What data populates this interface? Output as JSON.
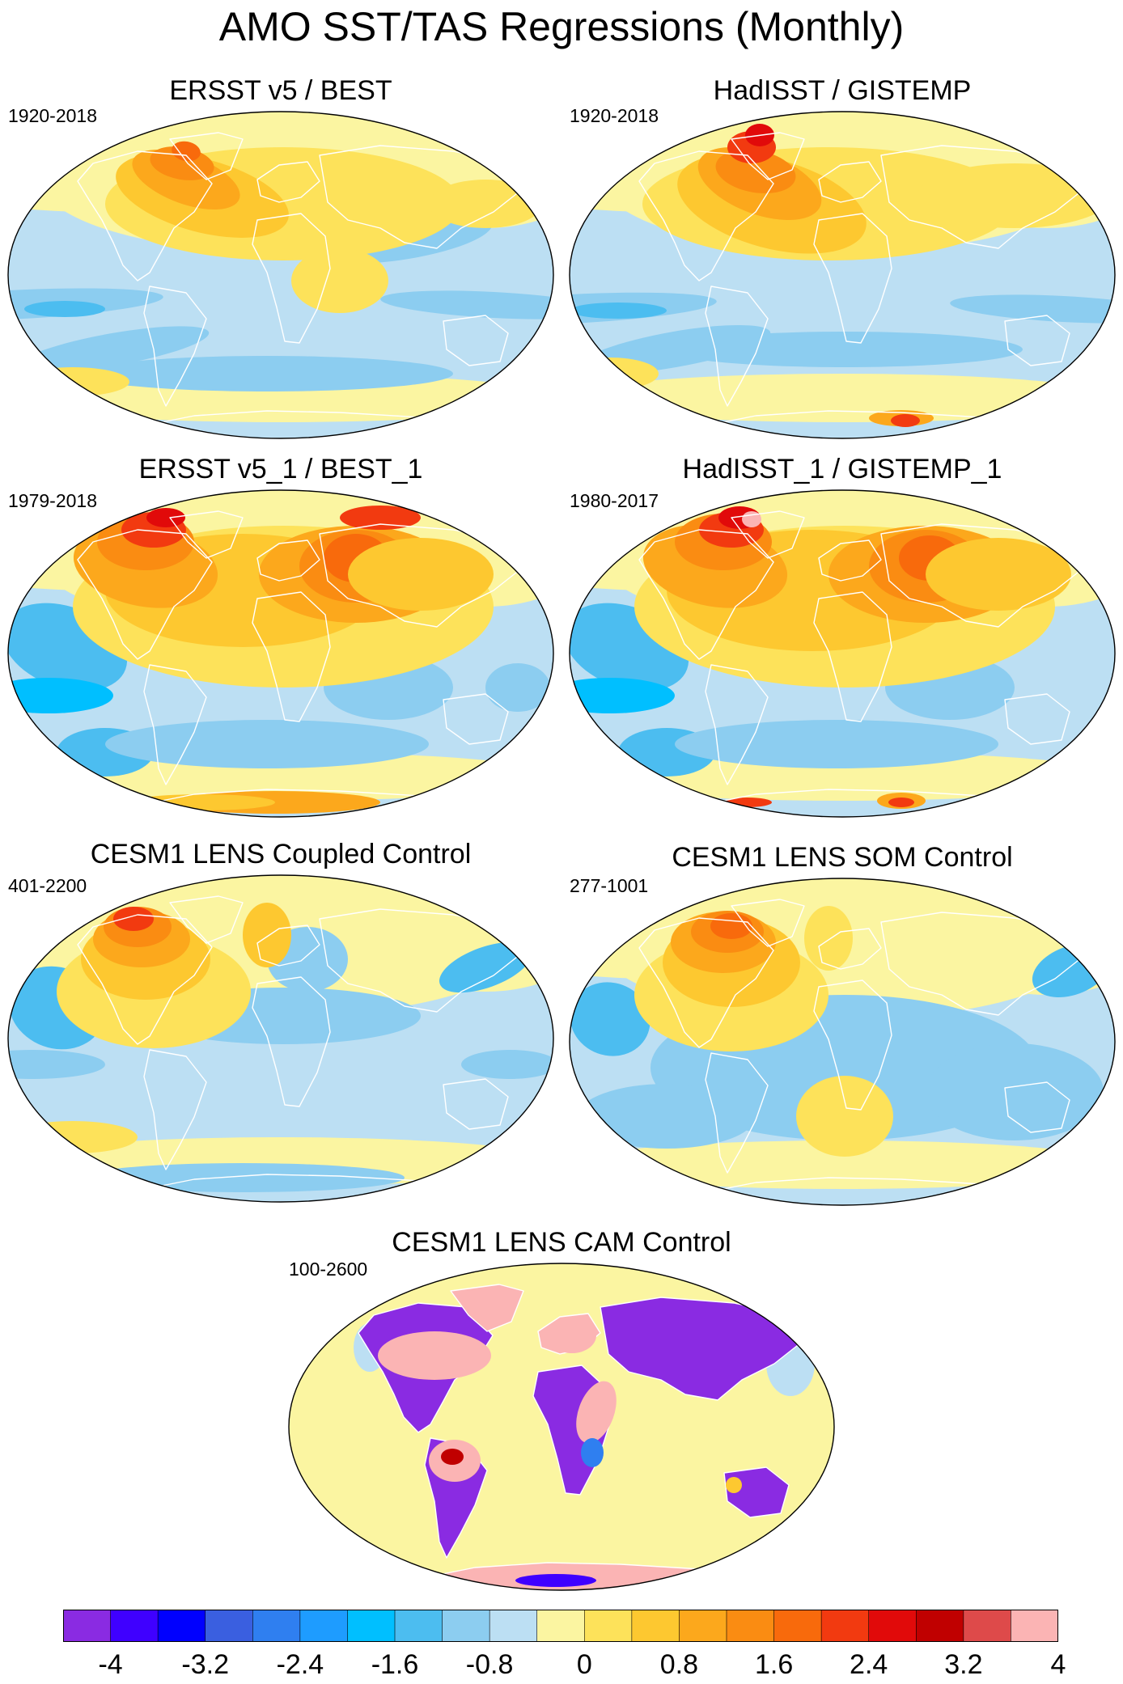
{
  "figure": {
    "title": "AMO SST/TAS Regressions (Monthly)"
  },
  "panels": [
    {
      "title": "ERSST v5 / BEST",
      "period": "1920-2018",
      "pattern": "obs_long"
    },
    {
      "title": "HadISST / GISTEMP",
      "period": "1920-2018",
      "pattern": "obs_long2"
    },
    {
      "title": "ERSST v5_1 / BEST_1",
      "period": "1979-2018",
      "pattern": "obs_recent"
    },
    {
      "title": "HadISST_1 / GISTEMP_1",
      "period": "1980-2017",
      "pattern": "obs_recent2"
    },
    {
      "title": "CESM1 LENS Coupled Control",
      "period": "401-2200",
      "pattern": "coupled"
    },
    {
      "title": "CESM1 LENS SOM Control",
      "period": "277-1001",
      "pattern": "som"
    },
    {
      "title": "CESM1 LENS CAM Control",
      "period": "100-2600",
      "pattern": "cam"
    }
  ],
  "colorbar": {
    "levels": [
      -4,
      -3.6,
      -3.2,
      -2.8,
      -2.4,
      -2,
      -1.6,
      -1.2,
      -0.8,
      -0.4,
      0,
      0.4,
      0.8,
      1.2,
      1.6,
      2,
      2.4,
      2.8,
      3.2,
      3.6,
      4
    ],
    "labels": [
      "-4",
      "-3.2",
      "-2.4",
      "-1.6",
      "-0.8",
      "0",
      "0.8",
      "1.6",
      "2.4",
      "3.2",
      "4"
    ],
    "colors": [
      "#8a2be2",
      "#3f00ff",
      "#0000ff",
      "#3a5fe0",
      "#2f7ff0",
      "#1e9cff",
      "#00bfff",
      "#4cbdf0",
      "#8ccdf0",
      "#bcdff3",
      "#fbf5a1",
      "#fde25a",
      "#fdc830",
      "#fca81c",
      "#fa8c12",
      "#f86a0c",
      "#f23a10",
      "#e10a0a",
      "#c00000",
      "#de4a4a",
      "#fbb4b4"
    ]
  }
}
